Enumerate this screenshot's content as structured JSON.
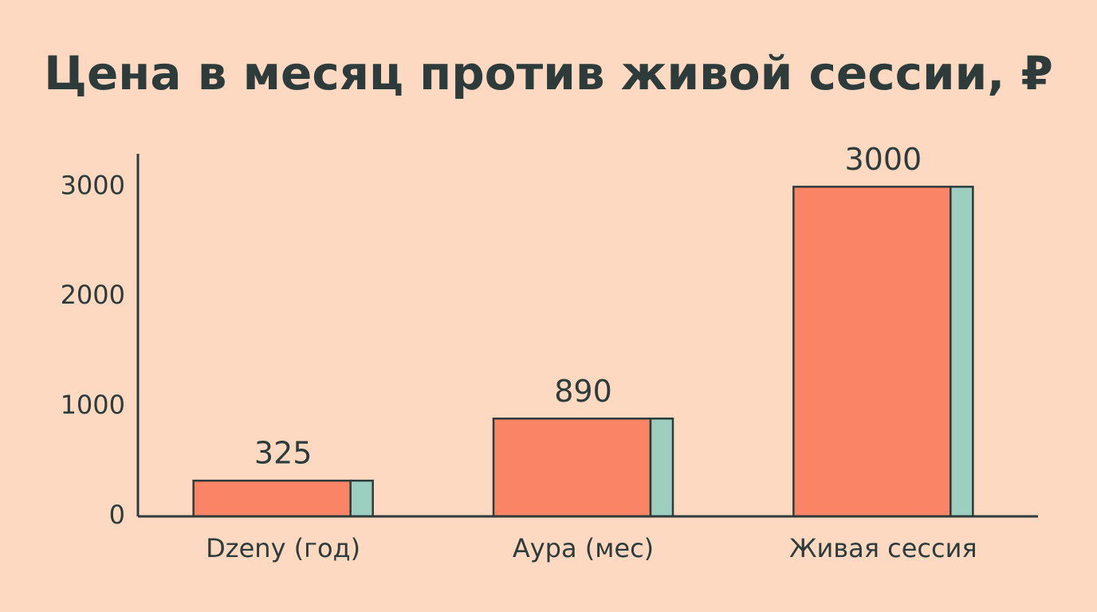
{
  "chart_data": {
    "type": "bar",
    "title": "Цена в месяц против живой сессии, ₽",
    "categories": [
      "Dzeny (год)",
      "Аура (мес)",
      "Живая сессия"
    ],
    "values": [
      325,
      890,
      3000
    ],
    "color": "#f98466",
    "side_color": "#9ccfbf",
    "ylim": [
      0,
      3300
    ],
    "yticks": [
      0,
      1000,
      2000,
      3000
    ],
    "grid": false
  }
}
